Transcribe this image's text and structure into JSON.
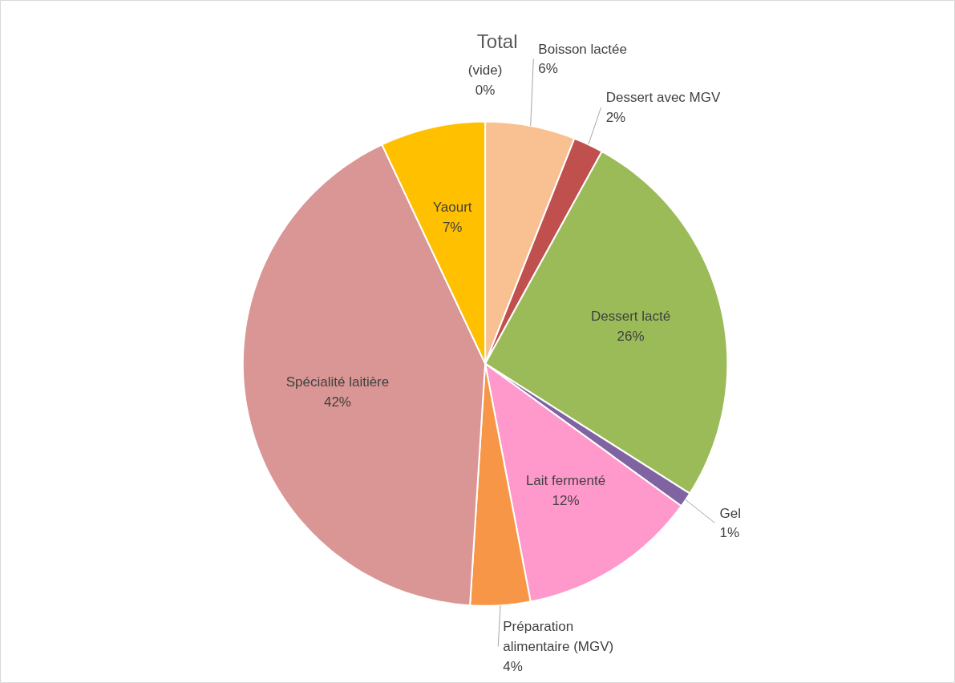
{
  "chart_data": {
    "type": "pie",
    "title": "Total",
    "categories": [
      "(vide)",
      "Boisson lactée",
      "Dessert avec MGV",
      "Dessert lacté",
      "Gel",
      "Lait fermenté",
      "Préparation alimentaire (MGV)",
      "Spécialité laitière",
      "Yaourt"
    ],
    "values": [
      0,
      6,
      2,
      26,
      1,
      12,
      4,
      42,
      7
    ],
    "colors": [
      "#4f81bd",
      "#f9c091",
      "#c0504d",
      "#9bbb59",
      "#8064a2",
      "#ff99cc",
      "#f79646",
      "#d99694",
      "#ffc000"
    ],
    "value_labels": [
      "0%",
      "6%",
      "2%",
      "26%",
      "1%",
      "12%",
      "4%",
      "42%",
      "7%"
    ]
  }
}
